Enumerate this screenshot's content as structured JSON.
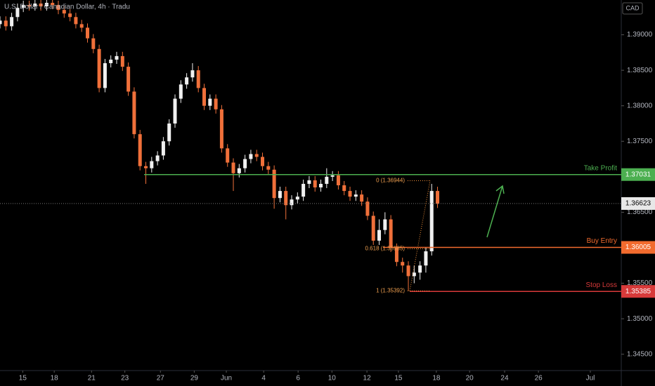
{
  "chart_data": {
    "type": "candlestick",
    "title": "U.S. Dollar / Canadian Dollar, 4h · Tradu",
    "currency": "CAD",
    "up_color": "#f0f0f0",
    "down_color": "#f0703a",
    "open": [
      1.3915,
      1.392,
      1.3912,
      1.3925,
      1.3938,
      1.3942,
      1.394,
      1.3944,
      1.394,
      1.3945,
      1.3942,
      1.3935,
      1.393,
      1.3925,
      1.3915,
      1.391,
      1.3895,
      1.388,
      1.3825,
      1.386,
      1.3865,
      1.387,
      1.3855,
      1.382,
      1.376,
      1.3715,
      1.3712,
      1.3722,
      1.373,
      1.375,
      1.3775,
      1.381,
      1.383,
      1.384,
      1.385,
      1.3825,
      1.38,
      1.381,
      1.3795,
      1.374,
      1.372,
      1.3705,
      1.3712,
      1.3725,
      1.3732,
      1.3728,
      1.3715,
      1.371,
      1.367,
      1.368,
      1.366,
      1.3668,
      1.3672,
      1.369,
      1.3695,
      1.3685,
      1.369,
      1.37,
      1.3702,
      1.3688,
      1.368,
      1.3672,
      1.3675,
      1.3665,
      1.3645,
      1.361,
      1.3625,
      1.364,
      1.36,
      1.358,
      1.3575,
      1.356,
      1.3565,
      1.3575,
      1.3595,
      1.368
    ],
    "high": [
      1.3926,
      1.3926,
      1.3931,
      1.3944,
      1.3948,
      1.3948,
      1.395,
      1.395,
      1.3951,
      1.3951,
      1.3948,
      1.3941,
      1.3936,
      1.3931,
      1.3921,
      1.3916,
      1.3901,
      1.3886,
      1.3866,
      1.3871,
      1.3876,
      1.3876,
      1.3861,
      1.3826,
      1.3766,
      1.3721,
      1.3728,
      1.3736,
      1.3756,
      1.3781,
      1.3816,
      1.3836,
      1.3846,
      1.386,
      1.3856,
      1.3831,
      1.3816,
      1.3816,
      1.3801,
      1.3746,
      1.3726,
      1.3718,
      1.3731,
      1.3738,
      1.3738,
      1.3734,
      1.3721,
      1.3716,
      1.3686,
      1.3686,
      1.3674,
      1.3678,
      1.3696,
      1.3701,
      1.3701,
      1.3696,
      1.3712,
      1.3708,
      1.3708,
      1.3694,
      1.3686,
      1.3681,
      1.3681,
      1.3671,
      1.3651,
      1.364,
      1.365,
      1.3646,
      1.3606,
      1.3586,
      1.3581,
      1.3575,
      1.3581,
      1.3601,
      1.369,
      1.3686
    ],
    "low": [
      1.3909,
      1.3906,
      1.3906,
      1.3919,
      1.3932,
      1.3934,
      1.3934,
      1.3934,
      1.3934,
      1.3936,
      1.3929,
      1.3924,
      1.3919,
      1.3909,
      1.3904,
      1.3889,
      1.3874,
      1.3819,
      1.3819,
      1.3854,
      1.3859,
      1.3849,
      1.3814,
      1.3754,
      1.3709,
      1.369,
      1.3706,
      1.3716,
      1.3724,
      1.3744,
      1.3769,
      1.3804,
      1.3824,
      1.3834,
      1.3819,
      1.3794,
      1.3794,
      1.3789,
      1.3734,
      1.3714,
      1.368,
      1.3699,
      1.3706,
      1.3719,
      1.3722,
      1.3709,
      1.3704,
      1.3655,
      1.3664,
      1.364,
      1.3654,
      1.3662,
      1.3666,
      1.3684,
      1.3679,
      1.3679,
      1.3684,
      1.3694,
      1.3682,
      1.3674,
      1.3666,
      1.3666,
      1.3659,
      1.3639,
      1.3604,
      1.3604,
      1.3619,
      1.3594,
      1.3574,
      1.3565,
      1.35392,
      1.355,
      1.3555,
      1.3565,
      1.3589,
      1.3656
    ],
    "close": [
      1.392,
      1.3912,
      1.3925,
      1.3938,
      1.3942,
      1.394,
      1.3944,
      1.394,
      1.3945,
      1.3942,
      1.3935,
      1.393,
      1.3925,
      1.3915,
      1.391,
      1.3895,
      1.388,
      1.3825,
      1.386,
      1.3865,
      1.387,
      1.3855,
      1.382,
      1.376,
      1.3715,
      1.3712,
      1.3722,
      1.373,
      1.375,
      1.3775,
      1.381,
      1.383,
      1.384,
      1.385,
      1.3825,
      1.38,
      1.381,
      1.3795,
      1.374,
      1.372,
      1.3705,
      1.3712,
      1.3725,
      1.3732,
      1.3728,
      1.3715,
      1.371,
      1.367,
      1.368,
      1.366,
      1.3668,
      1.3672,
      1.369,
      1.3695,
      1.3685,
      1.369,
      1.37,
      1.3702,
      1.3688,
      1.368,
      1.3672,
      1.3675,
      1.3665,
      1.3645,
      1.361,
      1.3625,
      1.364,
      1.36,
      1.358,
      1.3575,
      1.356,
      1.3565,
      1.3575,
      1.3595,
      1.368,
      1.3662
    ],
    "xlim": [
      0,
      106.5
    ],
    "xticks": [
      {
        "value": 3.9,
        "label": "15"
      },
      {
        "value": 9.3,
        "label": "18"
      },
      {
        "value": 15.7,
        "label": "21"
      },
      {
        "value": 21.4,
        "label": "23"
      },
      {
        "value": 27.5,
        "label": "27"
      },
      {
        "value": 33.3,
        "label": "29"
      },
      {
        "value": 38.8,
        "label": "Jun"
      },
      {
        "value": 45.2,
        "label": "4"
      },
      {
        "value": 51.1,
        "label": "6"
      },
      {
        "value": 56.9,
        "label": "10"
      },
      {
        "value": 62.9,
        "label": "12"
      },
      {
        "value": 68.3,
        "label": "15"
      },
      {
        "value": 74.8,
        "label": "18"
      },
      {
        "value": 80.5,
        "label": "20"
      },
      {
        "value": 86.5,
        "label": "24"
      },
      {
        "value": 92.3,
        "label": "26"
      },
      {
        "value": 101.2,
        "label": "Jul"
      }
    ],
    "ylim": [
      1.3427,
      1.3949
    ],
    "yticks": [
      {
        "value": 1.345,
        "label": "1.34500"
      },
      {
        "value": 1.35,
        "label": "1.35000"
      },
      {
        "value": 1.355,
        "label": "1.35500"
      },
      {
        "value": 1.365,
        "label": "1.36500"
      },
      {
        "value": 1.375,
        "label": "1.37500"
      },
      {
        "value": 1.38,
        "label": "1.38000"
      },
      {
        "value": 1.385,
        "label": "1.38500"
      },
      {
        "value": 1.39,
        "label": "1.39000"
      }
    ],
    "levels": [
      {
        "name": "Take Profit",
        "value": 1.37031,
        "value_label": "1.37031",
        "color": "#4caf50"
      },
      {
        "name": "Buy Entry",
        "value": 1.36005,
        "value_label": "1.36005",
        "color": "#f26b2e"
      },
      {
        "name": "Stop Loss",
        "value": 1.35385,
        "value_label": "1.35385",
        "color": "#d83a3a"
      }
    ],
    "current_price": {
      "value": 1.36623,
      "label": "1.36623"
    },
    "fib": [
      {
        "label": "0 (1.36944)",
        "value": 1.36944
      },
      {
        "label": "0.618 (1.35985)",
        "value": 1.35985
      },
      {
        "label": "1 (1.35392)",
        "value": 1.35392
      }
    ]
  }
}
